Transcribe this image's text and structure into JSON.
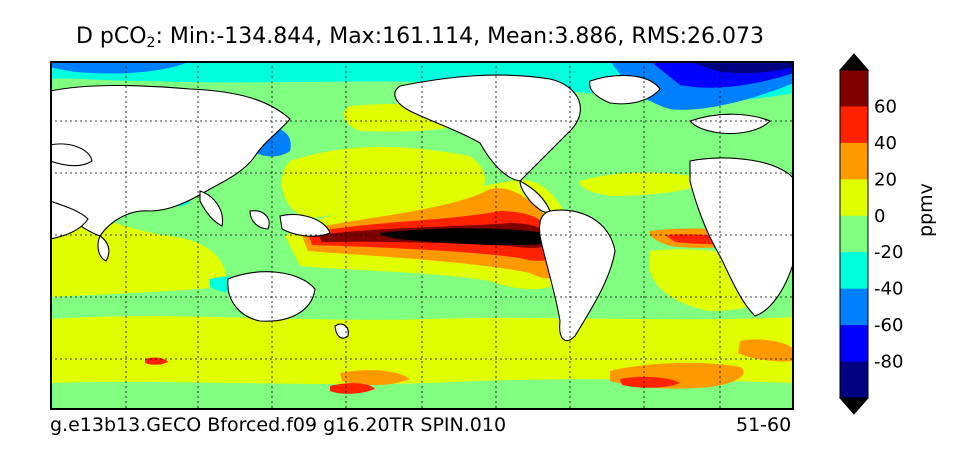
{
  "title": {
    "prefix": "D pCO",
    "subscript": "2",
    "stats": ": Min:-134.844, Max:161.114, Mean:3.886, RMS:26.073"
  },
  "footer": {
    "run_name": "g.e13b13.GECO Bforced.f09 g16.20TR SPIN.010",
    "years": "51-60"
  },
  "colorbar": {
    "unit": "ppmv",
    "tick_labels": [
      "60",
      "40",
      "20",
      "0",
      "-20",
      "-40",
      "-60",
      "-80"
    ],
    "levels": [
      -100,
      -80,
      -60,
      -40,
      -20,
      0,
      20,
      40,
      60,
      80
    ],
    "colors": [
      "#000080",
      "#0000ff",
      "#0080ff",
      "#00ffdd",
      "#80ff80",
      "#e0ff00",
      "#ff9900",
      "#ff2200",
      "#800000"
    ],
    "over_color": "#000000",
    "under_color": "#000000"
  }
}
